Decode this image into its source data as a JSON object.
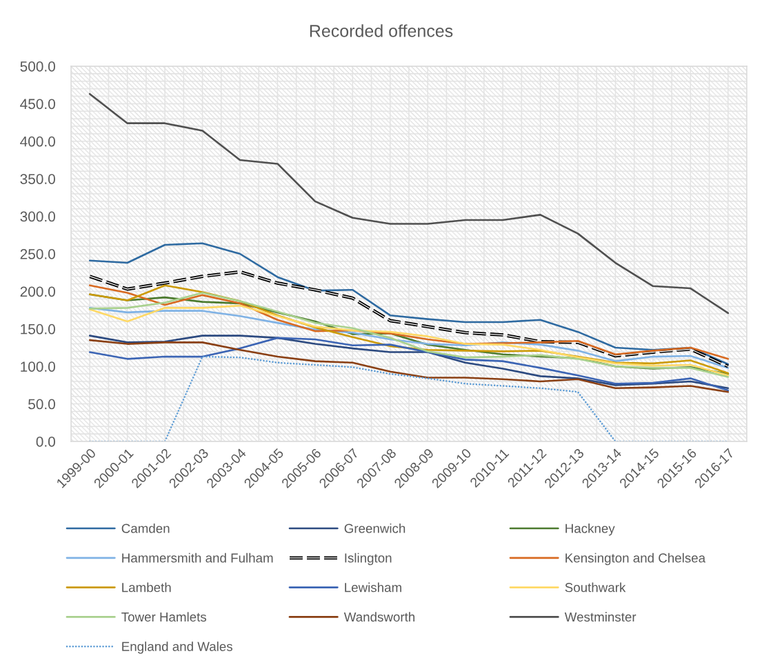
{
  "chart_data": {
    "type": "line",
    "title": "Recorded offences",
    "categories": [
      "1999-00",
      "2000-01",
      "2001-02",
      "2002-03",
      "2003-04",
      "2004-05",
      "2005-06",
      "2006-07",
      "2007-08",
      "2008-09",
      "2009-10",
      "2010-11",
      "2011-12",
      "2012-13",
      "2013-14",
      "2014-15",
      "2015-16",
      "2016-17"
    ],
    "series": [
      {
        "name": "Camden",
        "color": "#2e6aa1",
        "line_style": "solid",
        "values": [
          241,
          238,
          262,
          264,
          250,
          219,
          201,
          202,
          168,
          163,
          159,
          159,
          162,
          146,
          125,
          122,
          125,
          103
        ]
      },
      {
        "name": "Greenwich",
        "color": "#2c4a80",
        "line_style": "solid",
        "values": [
          141,
          132,
          133,
          141,
          141,
          138,
          130,
          124,
          119,
          119,
          105,
          97,
          87,
          84,
          75,
          77,
          80,
          71
        ]
      },
      {
        "name": "Hackney",
        "color": "#4b7a2e",
        "line_style": "solid",
        "values": [
          196,
          188,
          192,
          186,
          184,
          172,
          160,
          143,
          144,
          129,
          122,
          116,
          113,
          111,
          100,
          97,
          99,
          90
        ]
      },
      {
        "name": "Hammersmith and Fulham",
        "color": "#7fb2e5",
        "line_style": "solid",
        "values": [
          178,
          172,
          174,
          174,
          167,
          158,
          149,
          145,
          136,
          130,
          128,
          132,
          129,
          121,
          107,
          113,
          114,
          98
        ]
      },
      {
        "name": "Islington",
        "color": "#000000",
        "line_style": "dashed",
        "values": [
          220,
          203,
          211,
          220,
          226,
          211,
          202,
          191,
          161,
          153,
          145,
          142,
          133,
          132,
          114,
          119,
          123,
          100
        ]
      },
      {
        "name": "Kensington and Chelsea",
        "color": "#d86a21",
        "line_style": "solid",
        "values": [
          208,
          198,
          182,
          195,
          184,
          162,
          147,
          148,
          144,
          136,
          130,
          131,
          132,
          134,
          116,
          121,
          125,
          110
        ]
      },
      {
        "name": "Lambeth",
        "color": "#cc9a06",
        "line_style": "solid",
        "values": [
          196,
          188,
          208,
          199,
          187,
          168,
          152,
          139,
          127,
          122,
          121,
          120,
          121,
          113,
          105,
          104,
          108,
          91
        ]
      },
      {
        "name": "Lewisham",
        "color": "#3b64b4",
        "line_style": "solid",
        "values": [
          119,
          110,
          113,
          113,
          124,
          138,
          136,
          128,
          129,
          119,
          109,
          107,
          98,
          88,
          77,
          78,
          84,
          68
        ]
      },
      {
        "name": "Southwark",
        "color": "#ffd966",
        "line_style": "solid",
        "values": [
          176,
          160,
          178,
          178,
          181,
          167,
          153,
          148,
          146,
          140,
          130,
          129,
          122,
          112,
          104,
          101,
          102,
          88
        ]
      },
      {
        "name": "Tower Hamlets",
        "color": "#a9d18e",
        "line_style": "solid",
        "values": [
          177,
          178,
          185,
          198,
          187,
          173,
          158,
          151,
          138,
          120,
          112,
          113,
          115,
          110,
          100,
          98,
          98,
          86
        ]
      },
      {
        "name": "Wandsworth",
        "color": "#8a3f13",
        "line_style": "solid",
        "values": [
          135,
          130,
          132,
          132,
          122,
          113,
          107,
          105,
          93,
          85,
          85,
          83,
          80,
          83,
          71,
          72,
          74,
          66
        ]
      },
      {
        "name": "Westminster",
        "color": "#505050",
        "line_style": "solid",
        "values": [
          463,
          424,
          424,
          414,
          375,
          370,
          320,
          298,
          290,
          290,
          295,
          295,
          302,
          277,
          238,
          207,
          204,
          171
        ]
      },
      {
        "name": "England and Wales",
        "color": "#5b9bd5",
        "line_style": "dotted",
        "values": [
          0,
          0,
          0,
          113,
          112,
          105,
          102,
          99,
          90,
          84,
          77,
          74,
          71,
          66,
          0,
          0,
          0,
          0
        ]
      }
    ],
    "ylim": [
      0,
      500
    ],
    "yticks": [
      {
        "value": 0,
        "label": "0.0"
      },
      {
        "value": 50,
        "label": "50.0"
      },
      {
        "value": 100,
        "label": "100.0"
      },
      {
        "value": 150,
        "label": "150.0"
      },
      {
        "value": 200,
        "label": "200.0"
      },
      {
        "value": 250,
        "label": "250.0"
      },
      {
        "value": 300,
        "label": "300.0"
      },
      {
        "value": 350,
        "label": "350.0"
      },
      {
        "value": 400,
        "label": "400.0"
      },
      {
        "value": 450,
        "label": "450.0"
      },
      {
        "value": 500,
        "label": "500.0"
      }
    ],
    "grid": true,
    "legend": "bottom"
  }
}
